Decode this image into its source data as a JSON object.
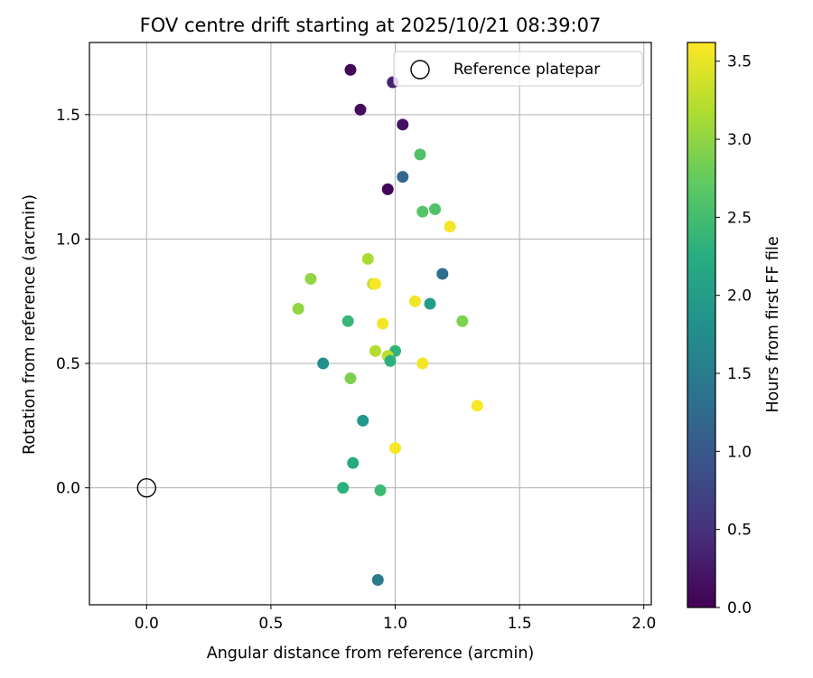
{
  "chart_data": {
    "type": "scatter",
    "title": "FOV centre drift starting at 2025/10/21 08:39:07",
    "xlabel": "Angular distance from reference (arcmin)",
    "ylabel": "Rotation from reference (arcmin)",
    "xlim": [
      -0.23,
      2.03
    ],
    "ylim": [
      -0.47,
      1.79
    ],
    "xticks": [
      0.0,
      0.5,
      1.0,
      1.5,
      2.0
    ],
    "xtick_labels": [
      "0.0",
      "0.5",
      "1.0",
      "1.5",
      "2.0"
    ],
    "yticks": [
      0.0,
      0.5,
      1.0,
      1.5
    ],
    "ytick_labels": [
      "0.0",
      "0.5",
      "1.0",
      "1.5"
    ],
    "grid": true,
    "legend": {
      "position": "top-right",
      "label": "Reference platepar"
    },
    "reference_point": {
      "x": 0.0,
      "y": 0.0
    },
    "colorbar": {
      "label": "Hours from first FF file",
      "colormap": "viridis",
      "range": [
        0.0,
        3.62
      ],
      "ticks": [
        0.0,
        0.5,
        1.0,
        1.5,
        2.0,
        2.5,
        3.0,
        3.5
      ],
      "tick_labels": [
        "0.0",
        "0.5",
        "1.0",
        "1.5",
        "2.0",
        "2.5",
        "3.0",
        "3.5"
      ]
    },
    "points": [
      {
        "x": 0.82,
        "y": 1.68,
        "c": 0.05
      },
      {
        "x": 0.99,
        "y": 1.63,
        "c": 0.35
      },
      {
        "x": 0.86,
        "y": 1.52,
        "c": 0.1
      },
      {
        "x": 1.03,
        "y": 1.46,
        "c": 0.15
      },
      {
        "x": 1.1,
        "y": 1.34,
        "c": 2.6
      },
      {
        "x": 1.03,
        "y": 1.25,
        "c": 1.2
      },
      {
        "x": 0.97,
        "y": 1.2,
        "c": 0.05
      },
      {
        "x": 1.11,
        "y": 1.11,
        "c": 2.65
      },
      {
        "x": 1.16,
        "y": 1.12,
        "c": 2.6
      },
      {
        "x": 1.22,
        "y": 1.05,
        "c": 3.55
      },
      {
        "x": 0.89,
        "y": 0.92,
        "c": 3.15
      },
      {
        "x": 0.66,
        "y": 0.84,
        "c": 3.0
      },
      {
        "x": 1.19,
        "y": 0.86,
        "c": 1.3
      },
      {
        "x": 0.91,
        "y": 0.82,
        "c": 3.3
      },
      {
        "x": 0.92,
        "y": 0.82,
        "c": 3.6
      },
      {
        "x": 1.08,
        "y": 0.75,
        "c": 3.55
      },
      {
        "x": 1.14,
        "y": 0.74,
        "c": 2.0
      },
      {
        "x": 0.61,
        "y": 0.72,
        "c": 3.0
      },
      {
        "x": 0.81,
        "y": 0.67,
        "c": 2.4
      },
      {
        "x": 1.27,
        "y": 0.67,
        "c": 2.9
      },
      {
        "x": 0.95,
        "y": 0.66,
        "c": 3.55
      },
      {
        "x": 0.92,
        "y": 0.55,
        "c": 3.2
      },
      {
        "x": 1.0,
        "y": 0.55,
        "c": 2.35
      },
      {
        "x": 0.97,
        "y": 0.53,
        "c": 3.25
      },
      {
        "x": 0.98,
        "y": 0.51,
        "c": 2.3
      },
      {
        "x": 0.71,
        "y": 0.5,
        "c": 1.8
      },
      {
        "x": 1.11,
        "y": 0.5,
        "c": 3.55
      },
      {
        "x": 0.82,
        "y": 0.44,
        "c": 2.9
      },
      {
        "x": 1.33,
        "y": 0.33,
        "c": 3.6
      },
      {
        "x": 0.87,
        "y": 0.27,
        "c": 1.9
      },
      {
        "x": 1.0,
        "y": 0.16,
        "c": 3.6
      },
      {
        "x": 0.83,
        "y": 0.1,
        "c": 2.2
      },
      {
        "x": 0.79,
        "y": 0.0,
        "c": 2.3
      },
      {
        "x": 0.94,
        "y": -0.01,
        "c": 2.45
      },
      {
        "x": 0.93,
        "y": -0.37,
        "c": 1.5
      }
    ]
  }
}
